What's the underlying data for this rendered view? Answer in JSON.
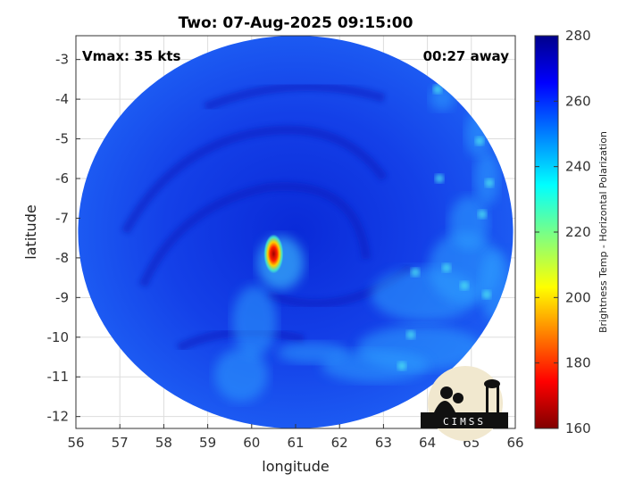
{
  "chart_data": {
    "type": "heatmap",
    "title": "Two: 07-Aug-2025 09:15:00",
    "xlabel": "longitude",
    "ylabel": "latitude",
    "xlim": [
      56,
      66
    ],
    "ylim": [
      -12.3,
      -2.4
    ],
    "xticks": [
      56,
      57,
      58,
      59,
      60,
      61,
      62,
      63,
      64,
      65,
      66
    ],
    "yticks": [
      -3,
      -4,
      -5,
      -6,
      -7,
      -8,
      -9,
      -10,
      -11,
      -12
    ],
    "grid": true,
    "annotations": {
      "top_left": "Vmax: 35 kts",
      "top_right": "00:27 away"
    },
    "swath": {
      "center_lon": 61,
      "center_lat": -7.35,
      "radius_deg": 4.95
    },
    "cold_core": {
      "lon": 60.5,
      "lat": -7.9,
      "value": 170
    },
    "colorbar": {
      "label": "Brightness Temp - Horizontal Polarization",
      "min": 160,
      "max": 280,
      "ticks": [
        280,
        260,
        240,
        220,
        200,
        180,
        160
      ],
      "colormap": "jet"
    },
    "logo_text": "CIMSS"
  },
  "colors": {
    "background": "#00008b",
    "swath_fill": "#1a3df0",
    "core": "#c00000"
  }
}
